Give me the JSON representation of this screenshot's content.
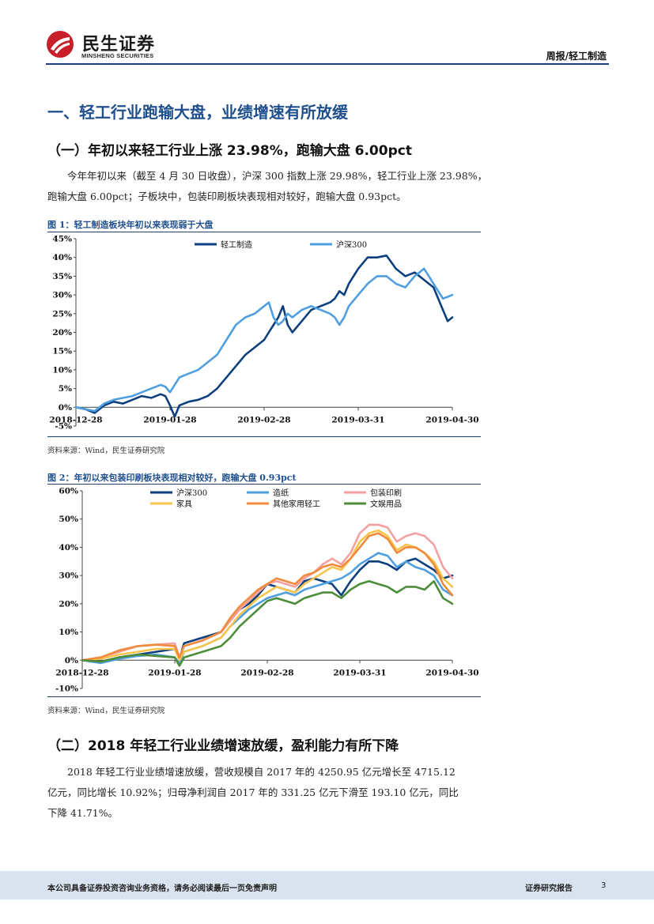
{
  "header": {
    "logo_cn": "民生证券",
    "logo_en": "MINSHENG SECURITIES",
    "right_title": "周报/轻工制造"
  },
  "section1": {
    "heading": "一、轻工行业跑输大盘，业绩增速有所放缓",
    "subheading": "（一）年初以来轻工行业上涨 23.98%，跑输大盘 6.00pct",
    "para_line1": "今年年初以来（截至 4 月 30 日收盘），沪深 300 指数上涨 29.98%，轻工行业上涨 23.98%，",
    "para_line2": "跑输大盘 6.00pct；子板块中，包装印刷板块表现相对较好，跑输大盘 0.93pct。"
  },
  "figure1": {
    "title": "图 1：轻工制造板块年初以来表现弱于大盘",
    "source": "资料来源：Wind，民生证券研究院"
  },
  "figure2": {
    "title": "图 2：年初以来包装印刷板块表现相对较好，跑输大盘 0.93pct",
    "source": "资料来源：Wind，民生证券研究院"
  },
  "section2": {
    "subheading": "（二）2018 年轻工行业业绩增速放缓，盈利能力有所下降",
    "para_line1": "2018 年轻工行业业绩增速放缓，营收规模自 2017 年的 4250.95 亿元增长至 4715.12",
    "para_line2": "亿元，同比增长 10.92%；归母净利润自 2017 年的 331.25 亿元下滑至 193.10 亿元，同比",
    "para_line3": "下降 41.71%。"
  },
  "footer": {
    "disclaimer": "本公司具备证券投资咨询业务资格，请务必阅读最后一页免责声明",
    "report_type": "证券研究报告",
    "page": "3"
  },
  "colors": {
    "brand_red": "#c8202b",
    "heading_blue": "#1f4f8c",
    "rule_navy": "#1f3f74"
  },
  "chart_data": [
    {
      "type": "line",
      "title": "图 1：轻工制造板块年初以来表现弱于大盘",
      "ylim": [
        -5,
        45
      ],
      "yticks": [
        -5,
        0,
        5,
        10,
        15,
        20,
        25,
        30,
        35,
        40,
        45
      ],
      "ytick_labels": [
        "-5%",
        "0%",
        "5%",
        "10%",
        "15%",
        "20%",
        "25%",
        "30%",
        "35%",
        "40%",
        "45%"
      ],
      "xlim": [
        0,
        80
      ],
      "xticks": [
        0,
        20,
        40,
        60,
        80
      ],
      "xtick_labels": [
        "2018-12-28",
        "2019-01-28",
        "2019-02-28",
        "2019-03-31",
        "2019-04-30"
      ],
      "series": [
        {
          "name": "轻工制造",
          "color": "#0d3f7f",
          "x": [
            0,
            2,
            4,
            6,
            8,
            10,
            12,
            14,
            16,
            18,
            19,
            20,
            21,
            22,
            24,
            26,
            28,
            30,
            32,
            34,
            36,
            38,
            40,
            41,
            42,
            43,
            44,
            45,
            46,
            48,
            50,
            52,
            54,
            55,
            56,
            57,
            58,
            60,
            62,
            64,
            66,
            68,
            70,
            72,
            74,
            76,
            78,
            79,
            80
          ],
          "values": [
            0,
            -0.5,
            -1.5,
            0.5,
            1.5,
            1,
            2,
            3,
            2.5,
            3.5,
            3,
            0.5,
            -2.5,
            0.5,
            1.5,
            2,
            3,
            5,
            8,
            11,
            14,
            16,
            18,
            20,
            22,
            24,
            27,
            22,
            20,
            23,
            26,
            27,
            28,
            29,
            31,
            30,
            33,
            37,
            40,
            40,
            40.5,
            37,
            35,
            36,
            34,
            32,
            26,
            23,
            24
          ]
        },
        {
          "name": "沪深300",
          "color": "#4f9fe0",
          "x": [
            0,
            2,
            4,
            6,
            8,
            10,
            12,
            14,
            16,
            18,
            19,
            20,
            21,
            22,
            24,
            26,
            28,
            30,
            32,
            34,
            36,
            38,
            40,
            41,
            42,
            43,
            44,
            45,
            46,
            48,
            50,
            52,
            54,
            55,
            56,
            57,
            58,
            60,
            62,
            64,
            66,
            68,
            70,
            72,
            74,
            76,
            78,
            79,
            80
          ],
          "values": [
            0,
            -0.5,
            -1,
            1,
            2,
            2.5,
            3,
            4,
            5,
            6,
            5.5,
            4,
            6,
            8,
            9,
            10,
            12,
            14,
            18,
            22,
            24,
            25,
            27,
            28,
            24,
            22,
            23,
            25,
            24,
            26,
            27,
            26,
            25,
            24,
            22,
            24,
            27,
            30,
            33,
            35,
            35,
            33,
            32,
            35,
            37,
            33,
            29,
            29.5,
            30
          ]
        }
      ]
    },
    {
      "type": "line",
      "title": "图 2：年初以来包装印刷板块表现相对较好，跑输大盘 0.93pct",
      "ylim": [
        -10,
        60
      ],
      "yticks": [
        -10,
        0,
        10,
        20,
        30,
        40,
        50,
        60
      ],
      "ytick_labels": [
        "-10%",
        "0%",
        "10%",
        "20%",
        "30%",
        "40%",
        "50%",
        "60%"
      ],
      "xlim": [
        0,
        80
      ],
      "xticks": [
        0,
        20,
        40,
        60,
        80
      ],
      "xtick_labels": [
        "2018-12-28",
        "2019-01-28",
        "2019-02-28",
        "2019-03-31",
        "2019-04-30"
      ],
      "series": [
        {
          "name": "沪深300",
          "color": "#0d3f7f",
          "x": [
            0,
            4,
            8,
            12,
            16,
            20,
            21,
            22,
            26,
            30,
            32,
            34,
            36,
            38,
            40,
            42,
            44,
            46,
            48,
            50,
            52,
            54,
            56,
            58,
            60,
            62,
            64,
            66,
            68,
            70,
            72,
            74,
            76,
            78,
            80
          ],
          "values": [
            0,
            -0.5,
            1,
            2,
            3,
            4,
            0.5,
            6,
            8,
            10,
            14,
            18,
            20,
            23,
            27,
            26,
            25,
            24,
            28,
            29,
            28,
            27,
            23,
            28,
            32,
            35,
            35,
            34,
            32,
            35,
            36,
            34,
            32,
            29,
            30
          ]
        },
        {
          "name": "造纸",
          "color": "#4f9fe0",
          "x": [
            0,
            4,
            8,
            12,
            16,
            20,
            21,
            22,
            26,
            30,
            32,
            34,
            36,
            38,
            40,
            42,
            44,
            46,
            48,
            50,
            52,
            54,
            56,
            58,
            60,
            62,
            64,
            66,
            68,
            70,
            72,
            74,
            76,
            78,
            80
          ],
          "values": [
            0,
            -1,
            0.5,
            1.5,
            2,
            1,
            -1,
            3,
            5,
            8,
            12,
            15,
            18,
            20,
            22,
            23,
            24,
            23,
            25,
            26,
            27,
            28,
            29,
            31,
            34,
            36,
            38,
            37,
            33,
            35,
            33,
            32,
            30,
            25,
            23
          ]
        },
        {
          "name": "包装印刷",
          "color": "#f4a0a0",
          "x": [
            0,
            4,
            8,
            12,
            16,
            20,
            21,
            22,
            26,
            30,
            32,
            34,
            36,
            38,
            40,
            42,
            44,
            46,
            48,
            50,
            52,
            54,
            56,
            58,
            60,
            62,
            64,
            66,
            68,
            70,
            72,
            74,
            76,
            78,
            80
          ],
          "values": [
            0,
            1,
            3,
            5,
            5.5,
            6,
            1,
            5,
            7,
            10,
            14,
            18,
            21,
            24,
            27,
            28,
            27,
            26,
            29,
            31,
            34,
            36,
            34,
            38,
            45,
            48,
            48,
            47,
            42,
            44,
            45,
            44,
            41,
            33,
            29
          ]
        },
        {
          "name": "家具",
          "color": "#f7c44c",
          "x": [
            0,
            4,
            8,
            12,
            16,
            20,
            21,
            22,
            26,
            30,
            32,
            34,
            36,
            38,
            40,
            42,
            44,
            46,
            48,
            50,
            52,
            54,
            56,
            58,
            60,
            62,
            64,
            66,
            68,
            70,
            72,
            74,
            76,
            78,
            80
          ],
          "values": [
            0,
            0.5,
            2,
            3,
            4,
            4,
            0,
            3,
            5,
            8,
            12,
            16,
            19,
            22,
            24,
            26,
            25,
            24,
            27,
            29,
            31,
            33,
            32,
            36,
            42,
            45,
            46,
            44,
            39,
            41,
            40,
            38,
            35,
            29,
            26
          ]
        },
        {
          "name": "其他家用轻工",
          "color": "#f08a3c",
          "x": [
            0,
            4,
            8,
            12,
            16,
            20,
            21,
            22,
            26,
            30,
            32,
            34,
            36,
            38,
            40,
            42,
            44,
            46,
            48,
            50,
            52,
            54,
            56,
            58,
            60,
            62,
            64,
            66,
            68,
            70,
            72,
            74,
            76,
            78,
            80
          ],
          "values": [
            0,
            1,
            3.5,
            5,
            5.5,
            5,
            1,
            5,
            7,
            10,
            15,
            19,
            22,
            25,
            27,
            29,
            28,
            27,
            30,
            31,
            33,
            34,
            33,
            36,
            40,
            44,
            45,
            43,
            38,
            40,
            40,
            38,
            34,
            27,
            23
          ]
        },
        {
          "name": "文娱用品",
          "color": "#4d8c3a",
          "x": [
            0,
            4,
            8,
            12,
            16,
            20,
            21,
            22,
            26,
            30,
            32,
            34,
            36,
            38,
            40,
            42,
            44,
            46,
            48,
            50,
            52,
            54,
            56,
            58,
            60,
            62,
            64,
            66,
            68,
            70,
            72,
            74,
            76,
            78,
            80
          ],
          "values": [
            0,
            -0.5,
            1,
            2,
            1.5,
            1,
            -2,
            1,
            3,
            5,
            8,
            12,
            15,
            18,
            21,
            22,
            21,
            20,
            22,
            23,
            24,
            24,
            22,
            25,
            27,
            28,
            27,
            26,
            24,
            26,
            26,
            25,
            28,
            22,
            20
          ]
        }
      ]
    }
  ]
}
